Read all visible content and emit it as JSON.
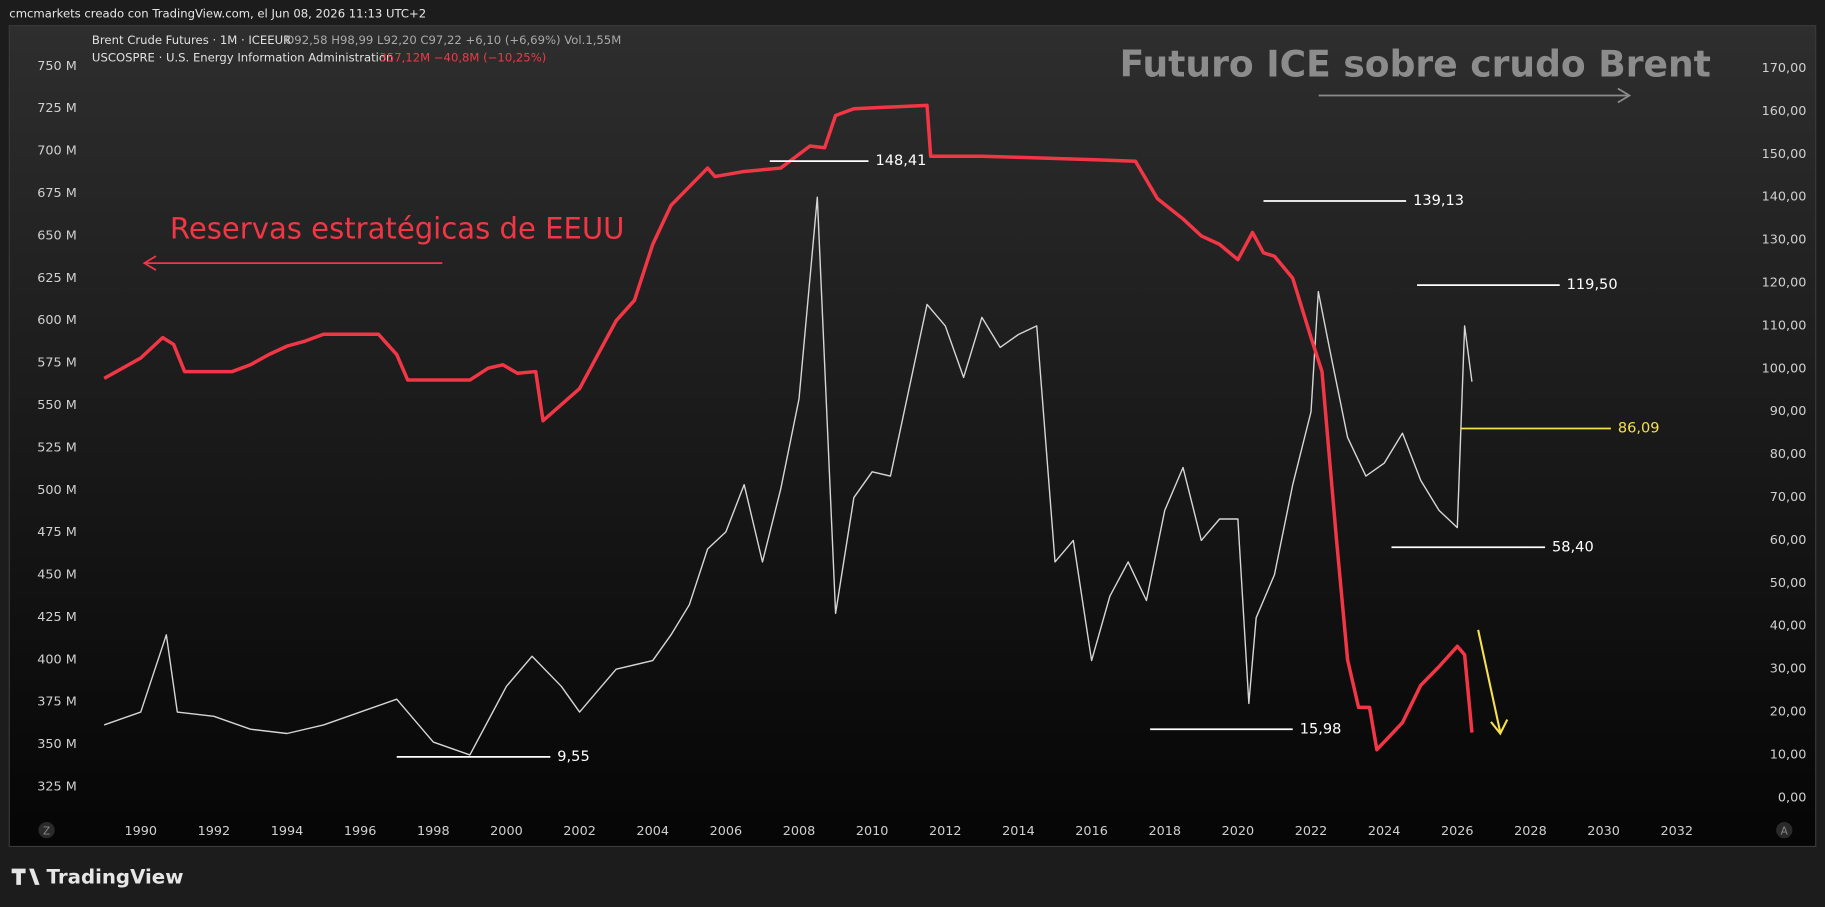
{
  "ui": {
    "header": "cmcmarkets creado con TradingView.com, el Jun 08, 2026 11:13 UTC+2",
    "logo": "TradingView",
    "buttons": [
      "Z",
      "A"
    ]
  },
  "chart_data": {
    "type": "line",
    "title": "Futuro ICE sobre crudo Brent",
    "series_note": "Reservas estratégicas de EEUU",
    "series_info": [
      "O92,58 H98,99 L92,20 C97,22 +6,10 (+6,69%) Vol.1,55M",
      "357,12M −40,8M (−10,25%)"
    ],
    "xlim": [
      1986.47,
      2033.89
    ],
    "xticks": [
      1990,
      1992,
      1994,
      1996,
      1998,
      2000,
      2002,
      2004,
      2006,
      2008,
      2010,
      2012,
      2014,
      2016,
      2018,
      2020,
      2022,
      2024,
      2026,
      2028,
      2030,
      2032
    ],
    "ylim": [
      -4,
      180
    ],
    "yticks": [
      {
        "value": 0,
        "label": "0,00"
      },
      {
        "value": 10,
        "label": "10,00"
      },
      {
        "value": 20,
        "label": "20,00"
      },
      {
        "value": 30,
        "label": "30,00"
      },
      {
        "value": 40,
        "label": "40,00"
      },
      {
        "value": 50,
        "label": "50,00"
      },
      {
        "value": 60,
        "label": "60,00"
      },
      {
        "value": 70,
        "label": "70,00"
      },
      {
        "value": 80,
        "label": "80,00"
      },
      {
        "value": 90,
        "label": "90,00"
      },
      {
        "value": 100,
        "label": "100,00"
      },
      {
        "value": 110,
        "label": "110,00"
      },
      {
        "value": 120,
        "label": "120,00"
      },
      {
        "value": 130,
        "label": "130,00"
      },
      {
        "value": 140,
        "label": "140,00"
      },
      {
        "value": 150,
        "label": "150,00"
      },
      {
        "value": 160,
        "label": "160,00"
      },
      {
        "value": 170,
        "label": "170,00"
      }
    ],
    "y2lim": [
      308.5,
      774
    ],
    "y2ticks": [
      {
        "value": 325,
        "label": "325 M"
      },
      {
        "value": 350,
        "label": "350 M"
      },
      {
        "value": 375,
        "label": "375 M"
      },
      {
        "value": 400,
        "label": "400 M"
      },
      {
        "value": 425,
        "label": "425 M"
      },
      {
        "value": 450,
        "label": "450 M"
      },
      {
        "value": 475,
        "label": "475 M"
      },
      {
        "value": 500,
        "label": "500 M"
      },
      {
        "value": 525,
        "label": "525 M"
      },
      {
        "value": 550,
        "label": "550 M"
      },
      {
        "value": 575,
        "label": "575 M"
      },
      {
        "value": 600,
        "label": "600 M"
      },
      {
        "value": 625,
        "label": "625 M"
      },
      {
        "value": 650,
        "label": "650 M"
      },
      {
        "value": 675,
        "label": "675 M"
      },
      {
        "value": 700,
        "label": "700 M"
      },
      {
        "value": 725,
        "label": "725 M"
      },
      {
        "value": 750,
        "label": "750 M"
      }
    ],
    "series": [
      {
        "name": "Brent Crude Futures · 1M · ICEEUR",
        "color": "#d6d6d6",
        "x": [
          1989,
          1990,
          1990.7,
          1991,
          1992,
          1993,
          1994,
          1995,
          1996,
          1997,
          1998,
          1999,
          1999.5,
          2000,
          2000.7,
          2001.5,
          2002,
          2002.5,
          2003,
          2004,
          2004.5,
          2005,
          2005.5,
          2006,
          2006.5,
          2007,
          2007.5,
          2008,
          2008.5,
          2009,
          2009.5,
          2010,
          2010.5,
          2011,
          2011.5,
          2012,
          2012.5,
          2013,
          2013.5,
          2014,
          2014.5,
          2015,
          2015.5,
          2016,
          2016.5,
          2017,
          2017.5,
          2018,
          2018.5,
          2019,
          2019.5,
          2020,
          2020.3,
          2020.5,
          2021,
          2021.5,
          2022,
          2022.2,
          2022.5,
          2023,
          2023.5,
          2024,
          2024.5,
          2025,
          2025.5,
          2026,
          2026.2,
          2026.4
        ],
        "values": [
          17,
          20,
          38,
          20,
          19,
          16,
          15,
          17,
          20,
          23,
          13,
          10,
          18,
          26,
          33,
          26,
          20,
          25,
          30,
          32,
          38,
          45,
          58,
          62,
          73,
          55,
          72,
          93,
          140,
          43,
          70,
          76,
          75,
          95,
          115,
          110,
          98,
          112,
          105,
          108,
          110,
          55,
          60,
          32,
          47,
          55,
          46,
          67,
          77,
          60,
          65,
          65,
          22,
          42,
          52,
          73,
          90,
          118,
          105,
          84,
          75,
          78,
          85,
          74,
          67,
          63,
          110,
          97
        ]
      },
      {
        "name": "USCOSPRE · U.S. Energy Information Administration",
        "color": "#f23645",
        "axis": "y2",
        "x": [
          1989,
          1990,
          1990.6,
          1990.9,
          1991.2,
          1992.5,
          1993,
          1993.5,
          1994,
          1994.5,
          1995,
          1996.5,
          1997,
          1997.3,
          1999,
          1999.5,
          1999.9,
          2000.3,
          2000.8,
          2001,
          2002,
          2002.5,
          2003,
          2003.5,
          2004,
          2004.5,
          2005.5,
          2005.7,
          2006.5,
          2007.5,
          2008.3,
          2008.7,
          2009,
          2009.5,
          2011.5,
          2011.6,
          2013,
          2014.5,
          2016,
          2017.2,
          2017.8,
          2018.5,
          2019,
          2019.5,
          2020,
          2020.4,
          2020.7,
          2021,
          2021.5,
          2022,
          2022.3,
          2022.7,
          2023,
          2023.3,
          2023.6,
          2023.8,
          2024.5,
          2025,
          2025.5,
          2026,
          2026.2,
          2026.4
        ],
        "values": [
          566,
          578,
          590,
          586,
          570,
          570,
          574,
          580,
          585,
          588,
          592,
          592,
          580,
          565,
          565,
          572,
          574,
          569,
          570,
          541,
          560,
          580,
          600,
          612,
          645,
          668,
          690,
          685,
          688,
          690,
          703,
          702,
          721,
          725,
          727,
          697,
          697,
          696,
          695,
          694,
          672,
          660,
          650,
          645,
          636,
          652,
          640,
          638,
          625,
          590,
          570,
          470,
          400,
          372,
          372,
          347,
          363,
          385,
          396,
          408,
          403,
          357.12
        ]
      }
    ],
    "annotations": [
      {
        "value": 148.41,
        "label": "148,41",
        "x": [
          2007.2,
          2009.9
        ],
        "color": "#ffffff"
      },
      {
        "value": 139.13,
        "label": "139,13",
        "x": [
          2020.7,
          2024.6
        ],
        "color": "#ffffff"
      },
      {
        "value": 119.5,
        "label": "119,50",
        "x": [
          2024.9,
          2028.8
        ],
        "color": "#ffffff"
      },
      {
        "value": 86.09,
        "label": "86,09",
        "x": [
          2026.1,
          2030.2
        ],
        "color": "#f5e050"
      },
      {
        "value": 58.4,
        "label": "58,40",
        "x": [
          2024.2,
          2028.4
        ],
        "color": "#ffffff"
      },
      {
        "value": 15.98,
        "label": "15,98",
        "x": [
          2017.6,
          2021.5
        ],
        "color": "#ffffff"
      },
      {
        "value": 9.55,
        "label": "9,55",
        "x": [
          1997.0,
          2001.2
        ],
        "color": "#ffffff"
      }
    ]
  }
}
